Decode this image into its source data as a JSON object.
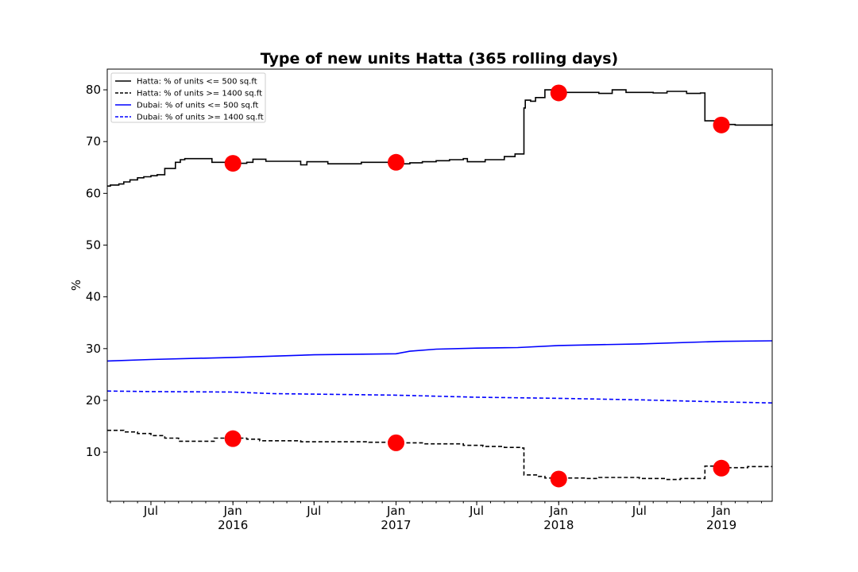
{
  "chart_data": {
    "type": "line",
    "title": "Type of new units Hatta (365 rolling days)",
    "xlabel": "",
    "ylabel": "%",
    "xlim": [
      "2015-03-25",
      "2019-04-25"
    ],
    "ylim": [
      0.5,
      84
    ],
    "yticks": [
      10,
      20,
      30,
      40,
      50,
      60,
      70,
      80
    ],
    "xticks": [
      {
        "date": "2015-07-01",
        "label": "Jul",
        "sub": ""
      },
      {
        "date": "2016-01-01",
        "label": "Jan",
        "sub": "2016"
      },
      {
        "date": "2016-07-01",
        "label": "Jul",
        "sub": ""
      },
      {
        "date": "2017-01-01",
        "label": "Jan",
        "sub": "2017"
      },
      {
        "date": "2017-07-01",
        "label": "Jul",
        "sub": ""
      },
      {
        "date": "2018-01-01",
        "label": "Jan",
        "sub": "2018"
      },
      {
        "date": "2018-07-01",
        "label": "Jul",
        "sub": ""
      },
      {
        "date": "2019-01-01",
        "label": "Jan",
        "sub": "2019"
      }
    ],
    "grid": false,
    "legend_position": "top-left",
    "series": [
      {
        "name": "Hatta: % of units <= 500 sq.ft",
        "color": "#000000",
        "dash": "solid",
        "step": true,
        "points": [
          [
            "2015-03-25",
            61.4
          ],
          [
            "2015-04-01",
            61.6
          ],
          [
            "2015-04-20",
            61.8
          ],
          [
            "2015-05-01",
            62.2
          ],
          [
            "2015-05-15",
            62.6
          ],
          [
            "2015-06-01",
            63.0
          ],
          [
            "2015-06-15",
            63.2
          ],
          [
            "2015-07-01",
            63.4
          ],
          [
            "2015-07-15",
            63.6
          ],
          [
            "2015-08-01",
            64.8
          ],
          [
            "2015-08-25",
            66.0
          ],
          [
            "2015-09-05",
            66.5
          ],
          [
            "2015-09-15",
            66.7
          ],
          [
            "2015-11-15",
            66.0
          ],
          [
            "2016-01-01",
            65.8
          ],
          [
            "2016-02-01",
            66.0
          ],
          [
            "2016-02-15",
            66.6
          ],
          [
            "2016-03-15",
            66.2
          ],
          [
            "2016-06-01",
            65.5
          ],
          [
            "2016-06-15",
            66.1
          ],
          [
            "2016-08-01",
            65.7
          ],
          [
            "2016-10-15",
            66.0
          ],
          [
            "2016-12-15",
            65.9
          ],
          [
            "2017-01-15",
            65.7
          ],
          [
            "2017-02-01",
            65.9
          ],
          [
            "2017-03-01",
            66.1
          ],
          [
            "2017-04-01",
            66.3
          ],
          [
            "2017-05-01",
            66.5
          ],
          [
            "2017-06-01",
            66.7
          ],
          [
            "2017-06-10",
            66.1
          ],
          [
            "2017-07-20",
            66.5
          ],
          [
            "2017-09-01",
            67.1
          ],
          [
            "2017-09-25",
            67.6
          ],
          [
            "2017-10-15",
            76.5
          ],
          [
            "2017-10-18",
            78.0
          ],
          [
            "2017-10-30",
            77.8
          ],
          [
            "2017-11-10",
            78.5
          ],
          [
            "2017-12-01",
            80.0
          ],
          [
            "2017-12-20",
            79.5
          ],
          [
            "2018-04-01",
            79.3
          ],
          [
            "2018-05-01",
            80.0
          ],
          [
            "2018-06-01",
            79.5
          ],
          [
            "2018-08-01",
            79.4
          ],
          [
            "2018-09-01",
            79.7
          ],
          [
            "2018-10-15",
            79.3
          ],
          [
            "2018-11-15",
            79.4
          ],
          [
            "2018-11-25",
            74.0
          ],
          [
            "2018-12-25",
            73.3
          ],
          [
            "2019-02-01",
            73.2
          ],
          [
            "2019-04-25",
            73.4
          ]
        ],
        "markers": [
          [
            "2016-01-01",
            65.8
          ],
          [
            "2017-01-01",
            66.0
          ],
          [
            "2018-01-01",
            79.4
          ],
          [
            "2019-01-01",
            73.2
          ]
        ]
      },
      {
        "name": "Hatta: % of units >= 1400 sq.ft",
        "color": "#000000",
        "dash": "dashed",
        "step": true,
        "points": [
          [
            "2015-03-25",
            14.2
          ],
          [
            "2015-05-01",
            13.9
          ],
          [
            "2015-06-01",
            13.6
          ],
          [
            "2015-07-01",
            13.2
          ],
          [
            "2015-08-01",
            12.7
          ],
          [
            "2015-09-01",
            12.1
          ],
          [
            "2015-11-20",
            12.7
          ],
          [
            "2016-02-01",
            12.5
          ],
          [
            "2016-03-01",
            12.2
          ],
          [
            "2016-06-01",
            12.0
          ],
          [
            "2016-11-01",
            11.9
          ],
          [
            "2017-01-15",
            11.8
          ],
          [
            "2017-03-01",
            11.6
          ],
          [
            "2017-06-01",
            11.3
          ],
          [
            "2017-07-15",
            11.1
          ],
          [
            "2017-09-01",
            10.9
          ],
          [
            "2017-10-10",
            10.8
          ],
          [
            "2017-10-15",
            5.6
          ],
          [
            "2017-11-15",
            5.3
          ],
          [
            "2017-12-01",
            5.0
          ],
          [
            "2018-03-01",
            4.9
          ],
          [
            "2018-04-01",
            5.1
          ],
          [
            "2018-07-01",
            4.9
          ],
          [
            "2018-09-01",
            4.7
          ],
          [
            "2018-10-01",
            4.9
          ],
          [
            "2018-11-25",
            7.3
          ],
          [
            "2019-01-15",
            7.0
          ],
          [
            "2019-03-01",
            7.2
          ],
          [
            "2019-04-25",
            7.2
          ]
        ],
        "markers": [
          [
            "2016-01-01",
            12.6
          ],
          [
            "2017-01-01",
            11.8
          ],
          [
            "2018-01-01",
            4.8
          ],
          [
            "2019-01-01",
            6.9
          ]
        ]
      },
      {
        "name": "Dubai: % of units <= 500 sq.ft",
        "color": "#0000ff",
        "dash": "solid",
        "step": false,
        "points": [
          [
            "2015-03-25",
            27.6
          ],
          [
            "2015-07-01",
            27.9
          ],
          [
            "2016-01-01",
            28.3
          ],
          [
            "2016-07-01",
            28.8
          ],
          [
            "2017-01-01",
            29.0
          ],
          [
            "2017-02-01",
            29.5
          ],
          [
            "2017-04-01",
            29.9
          ],
          [
            "2017-07-01",
            30.1
          ],
          [
            "2017-10-01",
            30.2
          ],
          [
            "2018-01-01",
            30.6
          ],
          [
            "2018-07-01",
            30.9
          ],
          [
            "2019-01-01",
            31.4
          ],
          [
            "2019-04-25",
            31.5
          ]
        ],
        "markers": []
      },
      {
        "name": "Dubai: % of units >= 1400 sq.ft",
        "color": "#0000ff",
        "dash": "dashed",
        "step": false,
        "points": [
          [
            "2015-03-25",
            21.8
          ],
          [
            "2015-07-01",
            21.7
          ],
          [
            "2016-01-01",
            21.6
          ],
          [
            "2016-04-01",
            21.3
          ],
          [
            "2016-07-01",
            21.2
          ],
          [
            "2017-01-01",
            21.0
          ],
          [
            "2017-07-01",
            20.6
          ],
          [
            "2018-01-01",
            20.4
          ],
          [
            "2018-07-01",
            20.1
          ],
          [
            "2019-01-01",
            19.7
          ],
          [
            "2019-04-25",
            19.5
          ]
        ],
        "markers": []
      }
    ]
  }
}
